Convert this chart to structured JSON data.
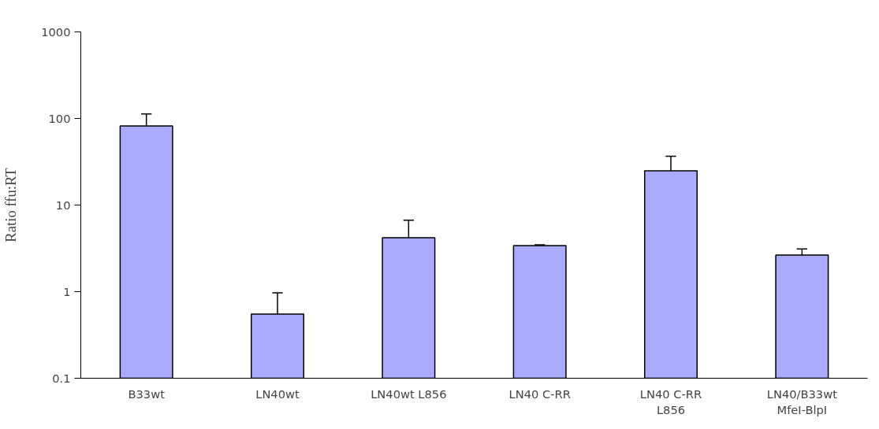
{
  "chart_data": {
    "type": "bar",
    "ylabel": "Ratio ffu:RT",
    "categories": [
      "B33wt",
      "LN40wt",
      "LN40wt L856",
      "LN40 C-RR",
      "LN40 C-RR\nL856",
      "LN40/B33wt\nMfeI-BlpI"
    ],
    "series": [
      {
        "color": "#aaaaff",
        "values": [
          82,
          0.55,
          4.2,
          3.4,
          24.8,
          2.64
        ],
        "errors": [
          [
            82,
            113
          ],
          [
            0.55,
            0.97
          ],
          [
            4.2,
            6.7
          ],
          [
            3.4,
            3.48
          ],
          [
            24.8,
            36.6
          ],
          [
            2.64,
            3.12
          ]
        ]
      }
    ],
    "log": true,
    "ylim": [
      0.1,
      1000
    ],
    "yticks": [
      0.1,
      1,
      10,
      100,
      1000
    ],
    "grid": false
  }
}
